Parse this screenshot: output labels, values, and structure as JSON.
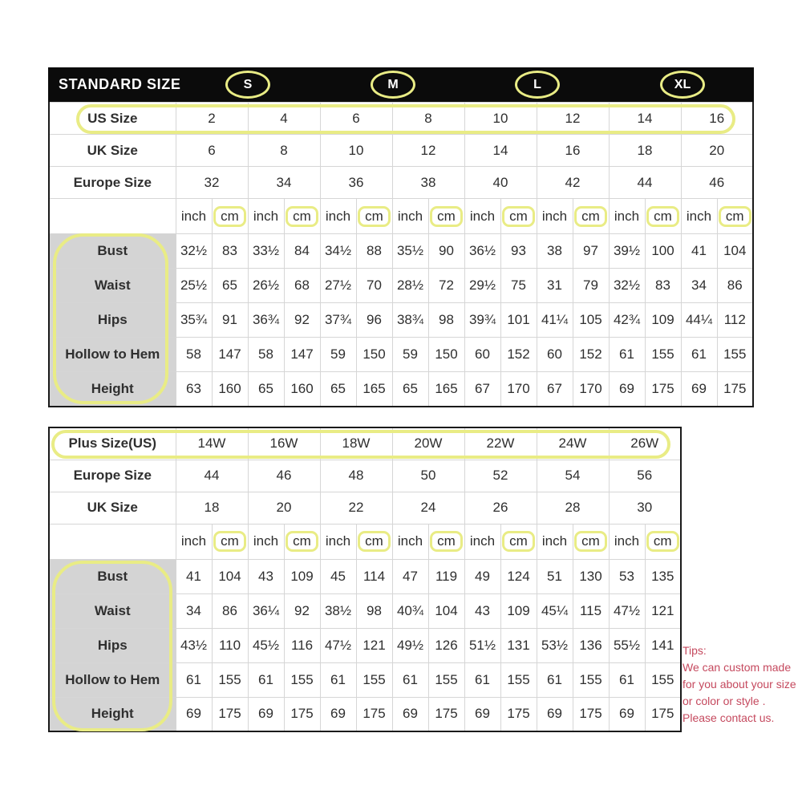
{
  "colors": {
    "highlight_yellow": "#e9ec85",
    "header_bg": "#0b0b0b",
    "label_cell_bg": "#d4d4d4",
    "tips_text": "#c5495e"
  },
  "standard_table": {
    "title": "STANDARD SIZE",
    "size_badges": [
      "S",
      "M",
      "L",
      "XL"
    ],
    "unit_labels": {
      "inch": "inch",
      "cm": "cm"
    },
    "size_rows": [
      {
        "label": "US Size",
        "values": [
          "2",
          "4",
          "6",
          "8",
          "10",
          "12",
          "14",
          "16"
        ]
      },
      {
        "label": "UK Size",
        "values": [
          "6",
          "8",
          "10",
          "12",
          "14",
          "16",
          "18",
          "20"
        ]
      },
      {
        "label": "Europe Size",
        "values": [
          "32",
          "34",
          "36",
          "38",
          "40",
          "42",
          "44",
          "46"
        ]
      }
    ],
    "measurement_rows": [
      {
        "label": "Bust",
        "values": [
          "32½",
          "83",
          "33½",
          "84",
          "34½",
          "88",
          "35½",
          "90",
          "36½",
          "93",
          "38",
          "97",
          "39½",
          "100",
          "41",
          "104"
        ]
      },
      {
        "label": "Waist",
        "values": [
          "25½",
          "65",
          "26½",
          "68",
          "27½",
          "70",
          "28½",
          "72",
          "29½",
          "75",
          "31",
          "79",
          "32½",
          "83",
          "34",
          "86"
        ]
      },
      {
        "label": "Hips",
        "values": [
          "35¾",
          "91",
          "36¾",
          "92",
          "37¾",
          "96",
          "38¾",
          "98",
          "39¾",
          "101",
          "41¼",
          "105",
          "42¾",
          "109",
          "44¼",
          "112"
        ]
      },
      {
        "label": "Hollow to Hem",
        "values": [
          "58",
          "147",
          "58",
          "147",
          "59",
          "150",
          "59",
          "150",
          "60",
          "152",
          "60",
          "152",
          "61",
          "155",
          "61",
          "155"
        ]
      },
      {
        "label": "Height",
        "values": [
          "63",
          "160",
          "65",
          "160",
          "65",
          "165",
          "65",
          "165",
          "67",
          "170",
          "67",
          "170",
          "69",
          "175",
          "69",
          "175"
        ]
      }
    ]
  },
  "plus_table": {
    "unit_labels": {
      "inch": "inch",
      "cm": "cm"
    },
    "size_rows": [
      {
        "label": "Plus Size(US)",
        "values": [
          "14W",
          "16W",
          "18W",
          "20W",
          "22W",
          "24W",
          "26W"
        ]
      },
      {
        "label": "Europe Size",
        "values": [
          "44",
          "46",
          "48",
          "50",
          "52",
          "54",
          "56"
        ]
      },
      {
        "label": "UK Size",
        "values": [
          "18",
          "20",
          "22",
          "24",
          "26",
          "28",
          "30"
        ]
      }
    ],
    "measurement_rows": [
      {
        "label": "Bust",
        "values": [
          "41",
          "104",
          "43",
          "109",
          "45",
          "114",
          "47",
          "119",
          "49",
          "124",
          "51",
          "130",
          "53",
          "135"
        ]
      },
      {
        "label": "Waist",
        "values": [
          "34",
          "86",
          "36¼",
          "92",
          "38½",
          "98",
          "40¾",
          "104",
          "43",
          "109",
          "45¼",
          "115",
          "47½",
          "121"
        ]
      },
      {
        "label": "Hips",
        "values": [
          "43½",
          "110",
          "45½",
          "116",
          "47½",
          "121",
          "49½",
          "126",
          "51½",
          "131",
          "53½",
          "136",
          "55½",
          "141"
        ]
      },
      {
        "label": "Hollow to Hem",
        "values": [
          "61",
          "155",
          "61",
          "155",
          "61",
          "155",
          "61",
          "155",
          "61",
          "155",
          "61",
          "155",
          "61",
          "155"
        ]
      },
      {
        "label": "Height",
        "values": [
          "69",
          "175",
          "69",
          "175",
          "69",
          "175",
          "69",
          "175",
          "69",
          "175",
          "69",
          "175",
          "69",
          "175"
        ]
      }
    ]
  },
  "tips": {
    "title": "Tips:",
    "lines": [
      "We can custom made",
      "for you about your size",
      "or color or style .",
      "Please contact us."
    ]
  }
}
